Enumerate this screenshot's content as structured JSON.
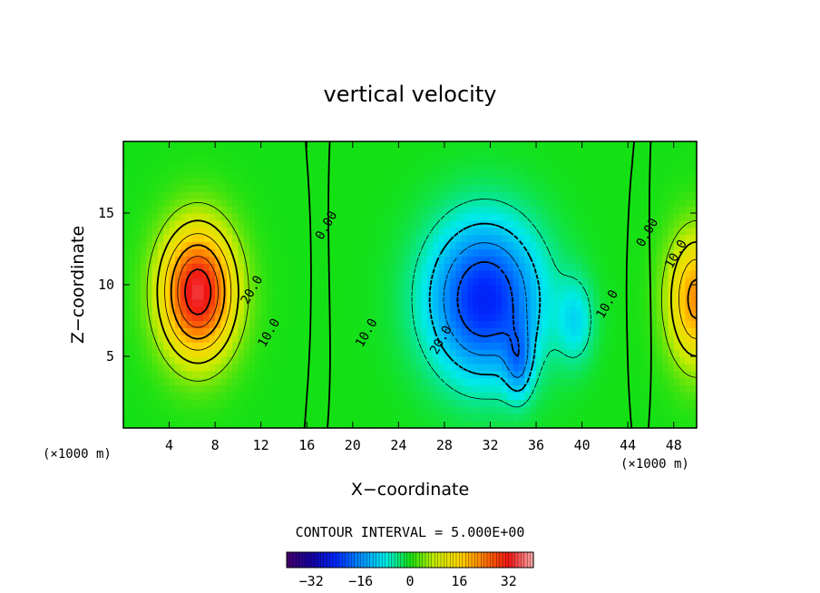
{
  "chart_data": {
    "type": "heatmap",
    "title": "vertical velocity",
    "xlabel": "X−coordinate",
    "ylabel": "Z−coordinate",
    "x_unit_left": "(×1000 m)",
    "x_unit_right": "(×1000 m)",
    "xlim": [
      0,
      50
    ],
    "ylim": [
      0,
      20
    ],
    "x_ticks": [
      4,
      8,
      12,
      16,
      20,
      24,
      28,
      32,
      36,
      40,
      44,
      48
    ],
    "y_ticks": [
      5,
      10,
      15
    ],
    "contour_interval_text": "CONTOUR INTERVAL = 5.000E+00",
    "contour_interval": 5,
    "contour_labels": [
      {
        "text": "20.0",
        "x": 11.5,
        "z": 9.5
      },
      {
        "text": "10.0",
        "x": 13.0,
        "z": 6.5
      },
      {
        "text": "0.00",
        "x": 18.0,
        "z": 14.0
      },
      {
        "text": "10.0",
        "x": 21.5,
        "z": 6.5
      },
      {
        "text": "20.0",
        "x": 28.0,
        "z": 6.0
      },
      {
        "text": "10.0",
        "x": 42.5,
        "z": 8.5
      },
      {
        "text": "0.00",
        "x": 46.0,
        "z": 13.5
      },
      {
        "text": "10.0",
        "x": 48.5,
        "z": 12.0
      }
    ],
    "features": [
      {
        "name": "updraft",
        "x": 6.5,
        "z": 9.5,
        "peak": 34,
        "sx": 3.2,
        "sz": 4.5
      },
      {
        "name": "downdraft",
        "x": 31.5,
        "z": 9.0,
        "peak": -25,
        "sx": 5.0,
        "sz": 5.5
      },
      {
        "name": "downdraft-core",
        "x": 34.5,
        "z": 4.5,
        "peak": -10,
        "sx": 1.2,
        "sz": 2.5
      },
      {
        "name": "downdraft-east",
        "x": 39.5,
        "z": 7.5,
        "peak": -8,
        "sx": 1.6,
        "sz": 3.0
      },
      {
        "name": "updraft-east",
        "x": 50.0,
        "z": 9.0,
        "peak": 22,
        "sx": 2.5,
        "sz": 4.5
      }
    ],
    "colorbar": {
      "min": -40,
      "max": 40,
      "ticks": [
        -32,
        -16,
        0,
        16,
        32
      ],
      "tick_labels": [
        "−32",
        "−16",
        "0",
        "16",
        "32"
      ]
    }
  }
}
